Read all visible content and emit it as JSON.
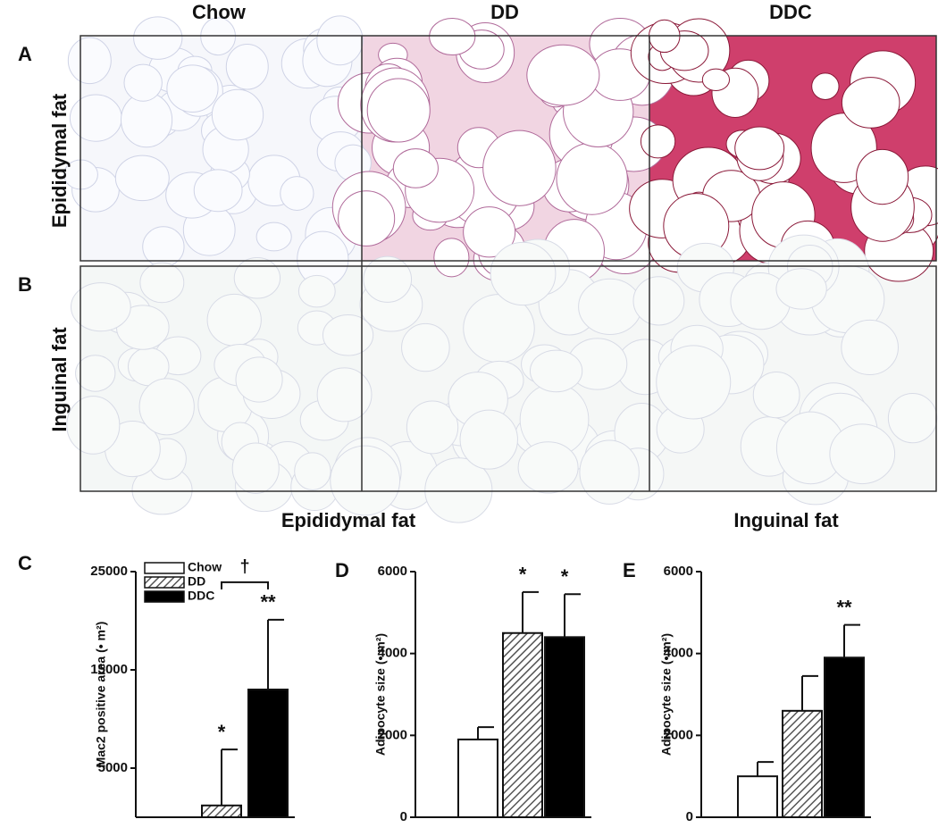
{
  "figure": {
    "column_labels": [
      "Chow",
      "DD",
      "DDC"
    ],
    "panel_labels": [
      "A",
      "B",
      "C",
      "D",
      "E"
    ],
    "row_labels": [
      "Epididymal fat",
      "Inguinal fat"
    ],
    "section_labels": [
      "Epididymal fat",
      "Inguinal fat"
    ]
  },
  "chart_data": [
    {
      "type": "bar",
      "ylabel": "Mac2 positive area (• m²)",
      "ylim": [
        0,
        25000
      ],
      "yticks": [
        5000,
        15000,
        25000
      ],
      "bracket_label": "†",
      "legend": "upper-left",
      "series": [
        {
          "name": "Chow",
          "color": "#ffffff",
          "values": [
            0
          ]
        },
        {
          "name": "DD",
          "color": "#ffffff",
          "hatch": true,
          "values": [
            1200
          ],
          "errors": [
            5700
          ],
          "marker": "*"
        },
        {
          "name": "DDC",
          "color": "#000000",
          "values": [
            13000
          ],
          "errors": [
            7100
          ],
          "marker": "**"
        }
      ]
    },
    {
      "type": "bar",
      "ylabel": "Adipocyte size (• m²)",
      "ylim": [
        0,
        6000
      ],
      "yticks": [
        0,
        2000,
        4000,
        6000
      ],
      "series": [
        {
          "color": "#ffffff",
          "values": [
            1900
          ],
          "errors": [
            300
          ]
        },
        {
          "color": "#ffffff",
          "hatch": true,
          "values": [
            4500
          ],
          "errors": [
            1000
          ],
          "marker": "*"
        },
        {
          "color": "#000000",
          "values": [
            4400
          ],
          "errors": [
            1050
          ],
          "marker": "*"
        }
      ]
    },
    {
      "type": "bar",
      "ylabel": "Adipocyte size (• m²)",
      "ylim": [
        0,
        6000
      ],
      "yticks": [
        0,
        2000,
        4000,
        6000
      ],
      "series": [
        {
          "color": "#ffffff",
          "values": [
            1000
          ],
          "errors": [
            350
          ]
        },
        {
          "color": "#ffffff",
          "hatch": true,
          "values": [
            2600
          ],
          "errors": [
            850
          ]
        },
        {
          "color": "#000000",
          "values": [
            3900
          ],
          "errors": [
            800
          ],
          "marker": "**"
        }
      ]
    }
  ]
}
